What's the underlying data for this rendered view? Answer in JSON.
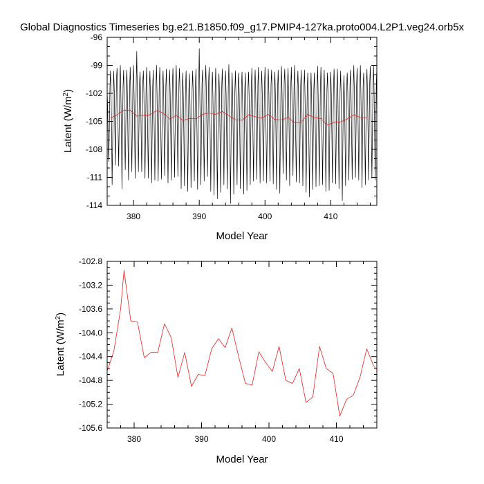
{
  "page": {
    "title": "Global Diagnostics Timeseries bg.e21.B1850.f09_g17.PMIP4-127ka.proto004.L2P1.veg24.orb5x"
  },
  "chart_data": [
    {
      "type": "line",
      "xlabel": "Model Year",
      "ylabel_main": "Latent (W/m",
      "ylabel_sup": "2",
      "ylabel_end": ")",
      "xlim": [
        376,
        417
      ],
      "ylim": [
        -114,
        -96
      ],
      "x_ticks": [
        380,
        390,
        400,
        410
      ],
      "x_tick_labels": [
        "380",
        "390",
        "400",
        "410"
      ],
      "y_ticks": [
        -96,
        -99,
        -102,
        -105,
        -108,
        -111,
        -114
      ],
      "y_tick_labels": [
        "-96",
        "-99",
        "-102",
        "-105",
        "-108",
        "-111",
        "-114"
      ],
      "series": [
        {
          "style": "monthly",
          "color": "#000000",
          "x_start": 376.0,
          "x_step": 0.0833333,
          "values": [
            -101.6,
            -103.8,
            -107.9,
            -109.3,
            -105.7,
            -101.5,
            -99.6,
            -101.8,
            -105.6,
            -111.8,
            -107.2,
            -102.2,
            -99.6,
            -101.8,
            -106.0,
            -109.7,
            -104.8,
            -100.4,
            -99.3,
            -101.9,
            -106.2,
            -109.8,
            -105.3,
            -100.7,
            -99.0,
            -102.1,
            -106.6,
            -112.2,
            -106.2,
            -101.2,
            -99.5,
            -102.3,
            -107.1,
            -110.2,
            -105.6,
            -100.8,
            -99.5,
            -102.4,
            -107.5,
            -111.3,
            -106.6,
            -101.4,
            -99.2,
            -102.0,
            -106.3,
            -110.4,
            -105.3,
            -100.8,
            -99.0,
            -101.8,
            -105.6,
            -111.1,
            -106.5,
            -101.0,
            -97.5,
            -102.0,
            -106.1,
            -110.4,
            -105.6,
            -100.9,
            -99.7,
            -101.8,
            -106.4,
            -110.4,
            -105.8,
            -100.8,
            -99.6,
            -102.0,
            -106.5,
            -111.1,
            -106.4,
            -101.2,
            -99.2,
            -102.3,
            -106.7,
            -111.1,
            -106.1,
            -101.4,
            -99.6,
            -102.4,
            -107.4,
            -111.6,
            -106.8,
            -101.3,
            -99.5,
            -102.3,
            -106.5,
            -111.3,
            -106.3,
            -101.2,
            -99.0,
            -102.1,
            -106.4,
            -111.4,
            -106.7,
            -101.0,
            -99.2,
            -102.3,
            -106.8,
            -111.2,
            -106.1,
            -101.1,
            -99.6,
            -102.0,
            -106.7,
            -110.8,
            -106.0,
            -101.2,
            -99.4,
            -102.2,
            -106.9,
            -111.6,
            -106.7,
            -101.5,
            -99.5,
            -102.1,
            -106.6,
            -111.3,
            -106.3,
            -101.0,
            -99.3,
            -101.9,
            -106.3,
            -111.0,
            -106.0,
            -100.9,
            -99.0,
            -102.1,
            -106.2,
            -110.9,
            -105.9,
            -100.8,
            -99.3,
            -102.3,
            -106.5,
            -112.2,
            -106.9,
            -101.4,
            -99.8,
            -102.6,
            -107.1,
            -111.9,
            -106.6,
            -101.3,
            -99.6,
            -102.5,
            -107.3,
            -112.5,
            -106.9,
            -101.7,
            -99.9,
            -102.6,
            -107.2,
            -112.1,
            -106.8,
            -101.5,
            -99.6,
            -102.1,
            -106.8,
            -111.4,
            -106.2,
            -101.1,
            -99.4,
            -102.4,
            -106.9,
            -112.3,
            -106.5,
            -101.2,
            -97.2,
            -102.0,
            -106.7,
            -111.8,
            -106.4,
            -101.0,
            -99.5,
            -102.1,
            -106.6,
            -111.4,
            -106.3,
            -101.1,
            -99.0,
            -101.9,
            -106.1,
            -110.9,
            -105.9,
            -100.8,
            -99.2,
            -102.3,
            -106.9,
            -112.5,
            -107.1,
            -101.6,
            -99.7,
            -102.5,
            -107.2,
            -112.9,
            -107.3,
            -101.8,
            -99.3,
            -102.7,
            -107.3,
            -113.3,
            -107.5,
            -101.9,
            -99.9,
            -102.4,
            -107.0,
            -112.6,
            -106.9,
            -101.3,
            -99.4,
            -102.1,
            -106.6,
            -111.8,
            -106.3,
            -101.0,
            -99.6,
            -102.1,
            -106.6,
            -112.2,
            -106.6,
            -101.3,
            -98.9,
            -102.4,
            -107.4,
            -113.8,
            -107.6,
            -102.0,
            -99.8,
            -102.3,
            -107.1,
            -112.8,
            -107.0,
            -101.6,
            -99.6,
            -102.2,
            -106.5,
            -111.8,
            -106.3,
            -101.2,
            -99.8,
            -102.3,
            -106.8,
            -112.2,
            -106.9,
            -101.4,
            -99.7,
            -102.5,
            -107.3,
            -112.8,
            -107.1,
            -101.7,
            -99.8,
            -102.6,
            -107.2,
            -112.4,
            -106.8,
            -101.3,
            -99.7,
            -102.4,
            -106.9,
            -111.8,
            -106.5,
            -101.3,
            -99.3,
            -102.2,
            -106.6,
            -111.4,
            -106.4,
            -101.1,
            -99.5,
            -102.0,
            -106.4,
            -111.2,
            -106.0,
            -101.0,
            -99.2,
            -102.2,
            -106.8,
            -111.6,
            -106.4,
            -101.3,
            -99.6,
            -102.1,
            -106.6,
            -111.4,
            -106.6,
            -101.1,
            -99.2,
            -102.2,
            -106.8,
            -111.6,
            -106.2,
            -101.4,
            -99.4,
            -101.9,
            -106.4,
            -111.4,
            -106.1,
            -101.0,
            -99.5,
            -102.0,
            -106.5,
            -111.7,
            -106.4,
            -101.2,
            -99.7,
            -102.3,
            -106.7,
            -112.3,
            -106.8,
            -101.4,
            -99.5,
            -102.4,
            -106.9,
            -112.7,
            -107.1,
            -101.6,
            -99.1,
            -101.8,
            -106.3,
            -110.6,
            -105.8,
            -100.7,
            -99.4,
            -102.0,
            -106.5,
            -111.3,
            -106.2,
            -101.1,
            -99.3,
            -101.8,
            -106.4,
            -111.9,
            -106.5,
            -101.2,
            -99.2,
            -101.9,
            -106.2,
            -110.8,
            -106.0,
            -100.9,
            -99.0,
            -102.4,
            -107.0,
            -111.5,
            -106.5,
            -101.3,
            -99.6,
            -102.0,
            -106.5,
            -111.6,
            -106.4,
            -101.3,
            -99.5,
            -102.1,
            -106.7,
            -111.9,
            -106.6,
            -101.3,
            -99.5,
            -102.3,
            -107.1,
            -112.6,
            -107.0,
            -101.6,
            -99.8,
            -102.4,
            -107.2,
            -113.1,
            -107.4,
            -101.8,
            -99.8,
            -102.5,
            -107.2,
            -112.3,
            -106.9,
            -101.6,
            -99.8,
            -102.4,
            -106.9,
            -112.0,
            -106.7,
            -101.4,
            -99.1,
            -102.3,
            -107.0,
            -111.9,
            -106.8,
            -101.4,
            -99.2,
            -102.1,
            -106.6,
            -111.8,
            -106.8,
            -101.3,
            -99.5,
            -102.4,
            -106.9,
            -112.5,
            -106.9,
            -101.5,
            -99.8,
            -102.3,
            -106.8,
            -112.4,
            -106.8,
            -101.3,
            -99.7,
            -102.2,
            -106.6,
            -111.6,
            -106.3,
            -101.2,
            -99.4,
            -102.1,
            -106.5,
            -111.7,
            -106.4,
            -101.4,
            -99.4,
            -102.3,
            -106.9,
            -112.2,
            -106.8,
            -101.6,
            -99.6,
            -102.5,
            -107.1,
            -113.5,
            -107.6,
            -102.0,
            -100.1,
            -102.3,
            -106.7,
            -111.9,
            -106.6,
            -101.4,
            -99.8,
            -101.9,
            -106.4,
            -111.3,
            -106.2,
            -101.1,
            -99.5,
            -102.2,
            -106.7,
            -111.2,
            -106.2,
            -101.2,
            -99.0,
            -101.8,
            -106.5,
            -111.0,
            -106.4,
            -101.3,
            -99.3,
            -101.6,
            -106.1,
            -111.3,
            -106.2,
            -101.0,
            -99.0,
            -102.2,
            -106.8,
            -112.1,
            -106.6,
            -101.2,
            -99.8,
            -102.0,
            -106.6,
            -111.8,
            -106.5,
            -101.1,
            -99.4,
            -102.0,
            -106.3,
            -111.3,
            -106.1,
            -100.9,
            -99.1,
            -101.7,
            -106.3,
            -111.1,
            -106.2,
            -101.3,
            -99.0,
            -101.9,
            -106.4,
            -111.3,
            -106.0,
            -101.0,
            -99.2,
            -102.0,
            -106.6,
            -111.7,
            -106.6,
            -101.2,
            -99.4,
            -102.0,
            -106.5,
            -111.5,
            -106.3,
            -101.4,
            -99.5,
            -102.2,
            -106.9,
            -112.1,
            -106.7,
            -101.6,
            -99.8
          ]
        },
        {
          "style": "annual",
          "color": "#e8201e",
          "x": [
            376.5,
            377.5,
            378.5,
            379.5,
            380.5,
            381.5,
            382.5,
            383.5,
            384.5,
            385.5,
            386.5,
            387.5,
            388.5,
            389.5,
            390.5,
            391.5,
            392.5,
            393.5,
            394.5,
            395.5,
            396.5,
            397.5,
            398.5,
            399.5,
            400.5,
            401.5,
            402.5,
            403.5,
            404.5,
            405.5,
            406.5,
            407.5,
            408.5,
            409.5,
            410.5,
            411.5,
            412.5,
            413.5,
            414.5,
            415.5
          ],
          "values": [
            -104.65,
            -104.3,
            -103.8,
            -103.8,
            -104.45,
            -104.35,
            -104.3,
            -103.85,
            -104.1,
            -104.75,
            -104.35,
            -104.9,
            -104.7,
            -104.72,
            -104.25,
            -104.1,
            -104.25,
            -103.95,
            -104.4,
            -104.85,
            -104.88,
            -104.3,
            -104.5,
            -104.65,
            -104.25,
            -104.8,
            -104.85,
            -104.6,
            -105.15,
            -105.1,
            -104.25,
            -104.6,
            -104.7,
            -105.4,
            -105.1,
            -105.05,
            -104.75,
            -104.3,
            -104.6,
            -104.6
          ]
        }
      ]
    },
    {
      "type": "line",
      "xlabel": "Model Year",
      "ylabel_main": "Latent (W/m",
      "ylabel_sup": "2",
      "ylabel_end": ")",
      "xlim": [
        376,
        416
      ],
      "ylim": [
        -105.6,
        -102.8
      ],
      "x_ticks": [
        380,
        390,
        400,
        410
      ],
      "x_tick_labels": [
        "380",
        "390",
        "400",
        "410"
      ],
      "y_ticks": [
        -102.8,
        -103.2,
        -103.6,
        -104.0,
        -104.4,
        -104.8,
        -105.2,
        -105.6
      ],
      "y_tick_labels": [
        "-102.8",
        "-103.2",
        "-103.6",
        "-104.0",
        "-104.4",
        "-104.8",
        "-105.2",
        "-105.6"
      ],
      "series": [
        {
          "style": "annual",
          "color": "#e8201e",
          "x": [
            376.0,
            377.0,
            378.0,
            378.5,
            379.5,
            380.5,
            381.5,
            382.5,
            383.5,
            384.5,
            385.5,
            386.5,
            387.5,
            388.5,
            389.5,
            390.5,
            391.5,
            392.5,
            393.5,
            394.5,
            395.5,
            396.5,
            397.5,
            398.5,
            399.5,
            400.5,
            401.5,
            402.5,
            403.5,
            404.5,
            405.5,
            406.5,
            407.5,
            408.5,
            409.5,
            410.5,
            411.5,
            412.5,
            413.5,
            414.5,
            415.5,
            416.0
          ],
          "values": [
            -104.65,
            -104.3,
            -103.6,
            -102.95,
            -103.8,
            -103.82,
            -104.42,
            -104.33,
            -104.33,
            -103.85,
            -104.08,
            -104.75,
            -104.33,
            -104.9,
            -104.7,
            -104.72,
            -104.27,
            -104.1,
            -104.25,
            -103.92,
            -104.4,
            -104.85,
            -104.88,
            -104.32,
            -104.5,
            -104.65,
            -104.23,
            -104.8,
            -104.85,
            -104.6,
            -105.17,
            -105.08,
            -104.23,
            -104.6,
            -104.68,
            -105.4,
            -105.12,
            -105.05,
            -104.75,
            -104.27,
            -104.55,
            -104.62
          ]
        }
      ]
    }
  ]
}
